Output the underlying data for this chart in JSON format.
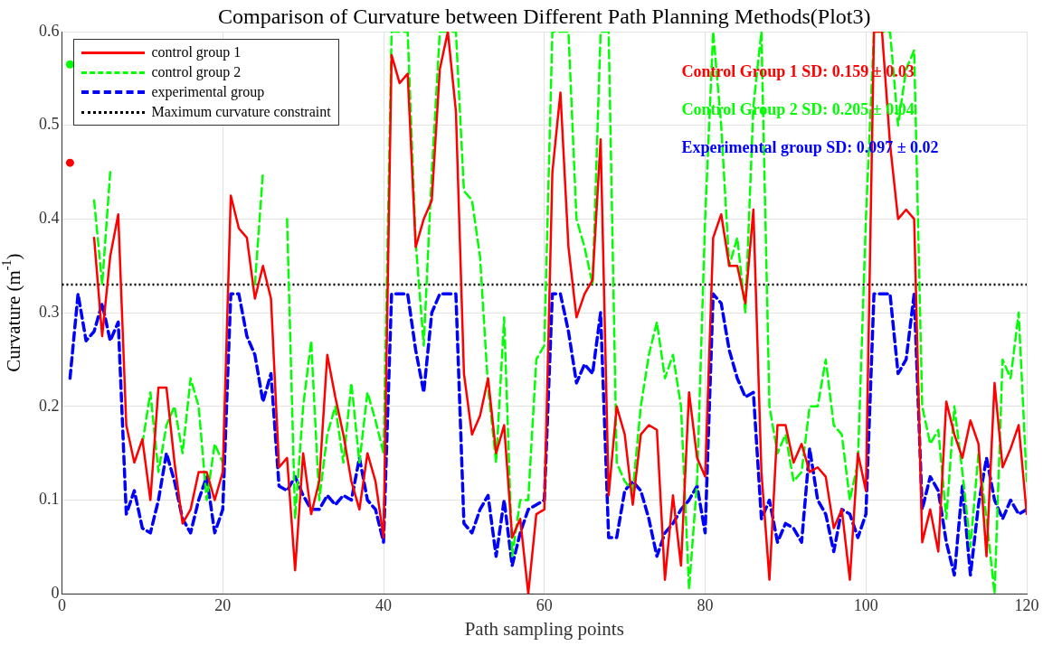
{
  "chart_data": {
    "type": "line",
    "title": "Comparison of Curvature between Different Path Planning Methods(Plot3)",
    "xlabel": "Path sampling points",
    "ylabel": "Curvature (m$^{-1}$)",
    "x": [
      1,
      2,
      3,
      4,
      5,
      6,
      7,
      8,
      9,
      10,
      11,
      12,
      13,
      14,
      15,
      16,
      17,
      18,
      19,
      20,
      21,
      22,
      23,
      24,
      25,
      26,
      27,
      28,
      29,
      30,
      31,
      32,
      33,
      34,
      35,
      36,
      37,
      38,
      39,
      40,
      41,
      42,
      43,
      44,
      45,
      46,
      47,
      48,
      49,
      50,
      51,
      52,
      53,
      54,
      55,
      56,
      57,
      58,
      59,
      60,
      61,
      62,
      63,
      64,
      65,
      66,
      67,
      68,
      69,
      70,
      71,
      72,
      73,
      74,
      75,
      76,
      77,
      78,
      79,
      80,
      81,
      82,
      83,
      84,
      85,
      86,
      87,
      88,
      89,
      90,
      91,
      92,
      93,
      94,
      95,
      96,
      97,
      98,
      99,
      100,
      101,
      102,
      103,
      104,
      105,
      106,
      107,
      108,
      109,
      110,
      111,
      112,
      113,
      114,
      115,
      116,
      117,
      118,
      119,
      120
    ],
    "series": [
      {
        "name": "control group 1",
        "color": "#ff0000",
        "line_style": "solid",
        "values": [
          0.46,
          null,
          null,
          0.38,
          0.275,
          0.36,
          0.405,
          0.18,
          0.14,
          0.165,
          0.1,
          0.22,
          0.22,
          0.14,
          0.075,
          0.09,
          0.13,
          0.13,
          0.1,
          0.13,
          0.425,
          0.39,
          0.38,
          0.315,
          0.35,
          0.315,
          0.135,
          0.145,
          0.025,
          0.15,
          0.085,
          0.12,
          0.255,
          0.21,
          0.17,
          0.12,
          0.09,
          0.15,
          0.12,
          0.06,
          0.575,
          0.545,
          0.555,
          0.37,
          0.4,
          0.42,
          0.56,
          0.6,
          0.515,
          0.235,
          0.17,
          0.19,
          0.23,
          0.15,
          0.18,
          0.06,
          0.08,
          0.0,
          0.085,
          0.09,
          0.45,
          0.535,
          0.37,
          0.295,
          0.32,
          0.335,
          0.485,
          0.105,
          0.2,
          0.17,
          0.095,
          0.17,
          0.18,
          0.175,
          0.015,
          0.105,
          0.03,
          0.215,
          0.145,
          0.125,
          0.38,
          0.405,
          0.35,
          0.35,
          0.31,
          0.41,
          0.13,
          0.015,
          0.18,
          0.18,
          0.14,
          0.16,
          0.13,
          0.135,
          0.125,
          0.07,
          0.09,
          0.015,
          0.15,
          0.11,
          0.6,
          0.6,
          0.48,
          0.4,
          0.41,
          0.4,
          0.055,
          0.09,
          0.045,
          0.205,
          0.17,
          0.145,
          0.185,
          0.16,
          0.04,
          0.225,
          0.135,
          0.155,
          0.18,
          0.085
        ]
      },
      {
        "name": "control group 2",
        "color": "#00ff00",
        "line_style": "dashed",
        "values": [
          0.565,
          null,
          null,
          0.42,
          0.33,
          0.45,
          null,
          null,
          null,
          0.16,
          0.215,
          0.13,
          0.18,
          0.2,
          0.15,
          0.23,
          0.2,
          0.1,
          0.16,
          0.14,
          null,
          null,
          null,
          0.33,
          0.45,
          null,
          null,
          0.4,
          0.08,
          0.2,
          0.27,
          0.1,
          0.17,
          0.2,
          0.14,
          0.225,
          0.14,
          0.215,
          0.185,
          0.15,
          0.6,
          0.6,
          0.6,
          0.375,
          0.265,
          0.45,
          0.6,
          0.6,
          0.6,
          0.43,
          0.42,
          0.36,
          0.22,
          0.14,
          0.295,
          0.04,
          0.1,
          0.1,
          0.25,
          0.265,
          0.6,
          0.6,
          0.6,
          0.4,
          0.37,
          0.33,
          0.6,
          0.6,
          0.14,
          0.12,
          0.11,
          0.2,
          0.255,
          0.29,
          0.23,
          0.255,
          0.2,
          0.005,
          0.12,
          0.4,
          0.6,
          0.5,
          0.35,
          0.38,
          0.3,
          0.52,
          0.6,
          0.2,
          0.15,
          0.17,
          0.12,
          0.13,
          0.2,
          0.2,
          0.25,
          0.18,
          0.17,
          0.1,
          0.14,
          0.4,
          0.6,
          0.6,
          0.6,
          0.5,
          0.56,
          0.58,
          0.2,
          0.16,
          0.175,
          0.08,
          0.2,
          0.13,
          0.05,
          0.15,
          0.08,
          0,
          0.25,
          0.23,
          0.3,
          0.12
        ]
      },
      {
        "name": "experimental group",
        "color": "#0000ff",
        "line_style": "dashed",
        "values": [
          0.23,
          0.32,
          0.27,
          0.28,
          0.31,
          0.27,
          0.29,
          0.085,
          0.11,
          0.07,
          0.065,
          0.1,
          0.15,
          0.12,
          0.08,
          0.065,
          0.1,
          0.125,
          0.065,
          0.09,
          0.32,
          0.32,
          0.275,
          0.255,
          0.205,
          0.235,
          0.115,
          0.11,
          0.125,
          0.105,
          0.09,
          0.09,
          0.105,
          0.095,
          0.105,
          0.1,
          0.145,
          0.1,
          0.09,
          0.055,
          0.32,
          0.32,
          0.32,
          0.26,
          0.215,
          0.3,
          0.32,
          0.32,
          0.32,
          0.075,
          0.065,
          0.09,
          0.105,
          0.04,
          0.1,
          0.03,
          0.065,
          0.09,
          0.095,
          0.1,
          0.32,
          0.32,
          0.28,
          0.225,
          0.245,
          0.235,
          0.3,
          0.06,
          0.06,
          0.11,
          0.12,
          0.11,
          0.08,
          0.04,
          0.065,
          0.075,
          0.09,
          0.1,
          0.115,
          0.065,
          0.32,
          0.31,
          0.26,
          0.23,
          0.21,
          0.215,
          0.08,
          0.1,
          0.055,
          0.075,
          0.07,
          0.055,
          0.155,
          0.1,
          0.085,
          0.045,
          0.09,
          0.085,
          0.06,
          0.085,
          0.32,
          0.32,
          0.32,
          0.235,
          0.25,
          0.32,
          0.09,
          0.125,
          0.11,
          0.055,
          0.02,
          0.115,
          0.02,
          0.095,
          0.145,
          0.1,
          0.08,
          0.1,
          0.085,
          0.09
        ]
      }
    ],
    "ref_lines": [
      {
        "axis": "y",
        "value": 0.33,
        "label": "Maximum curvature constraint",
        "color": "#000000",
        "line_style": "dotted"
      }
    ],
    "annotations": [
      "Control Group 1 SD: 0.159 ± 0.03",
      "Control Group 2 SD: 0.205 ± 0.04",
      "Experimental group SD: 0.097 ± 0.02"
    ],
    "xlim": [
      0,
      120
    ],
    "xticks": [
      0,
      20,
      40,
      60,
      80,
      100,
      120
    ],
    "ylim": [
      0,
      0.6
    ],
    "yticks": [
      0,
      0.1,
      0.2,
      0.3,
      0.4,
      0.5,
      0.6
    ],
    "grid": true,
    "legend": "top left",
    "marker": "none"
  }
}
